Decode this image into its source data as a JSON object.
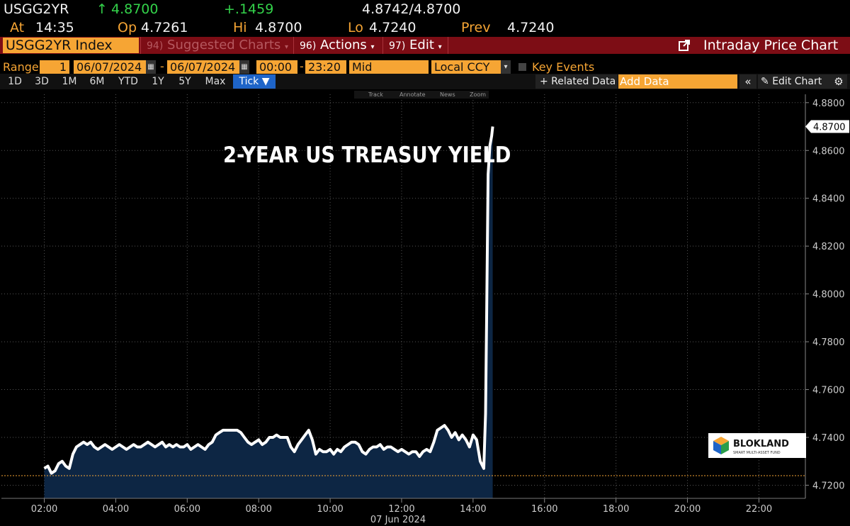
{
  "quote": {
    "ticker": "USGG2YR",
    "arrow": "↑",
    "last": "4.8700",
    "change": "+.1459",
    "bid_ask": "4.8742/4.8700",
    "at_label": "At",
    "at_time": "14:35",
    "open_label": "Op",
    "open": "4.7261",
    "high_label": "Hi",
    "high": "4.8700",
    "low_label": "Lo",
    "low": "4.7240",
    "prev_label": "Prev",
    "prev": "4.7240"
  },
  "toolbar": {
    "security": "USGG2YR Index",
    "suggested_num": "94)",
    "suggested": "Suggested Charts",
    "actions_num": "96)",
    "actions": "Actions",
    "edit_num": "97)",
    "edit": "Edit",
    "chart_title": "Intraday Price Chart"
  },
  "range": {
    "label": "Range",
    "count": "1",
    "start_date": "06/07/2024",
    "end_date": "06/07/2024",
    "start_time": "00:00",
    "end_time": "23:20",
    "price_type": "Mid",
    "currency": "Local CCY",
    "key_events": "Key Events"
  },
  "periods": [
    "1D",
    "3D",
    "1M",
    "6M",
    "YTD",
    "1Y",
    "5Y",
    "Max"
  ],
  "tick_label": "Tick ▼",
  "related_data": "+ Related Data",
  "add_data_placeholder": "Add Data",
  "edit_chart": "Edit Chart",
  "chart_tools": [
    "Track",
    "Annotate",
    "News",
    "Zoom"
  ],
  "overlay_title": "2-YEAR US TREASUY YIELD",
  "logo": {
    "name": "BLOKLAND",
    "tagline": "SMART MULTI-ASSET FUND"
  },
  "colors": {
    "orange": "#f6a534",
    "green": "#33d24a",
    "red_bar": "#7d0d15",
    "area_fill": "#0d2644",
    "line": "#ffffff",
    "prev_close_line": "#f6a534"
  },
  "chart_data": {
    "type": "area",
    "title": "2-YEAR US TREASUY YIELD",
    "date_label": "07 Jun 2024",
    "x_ticks": [
      "02:00",
      "04:00",
      "06:00",
      "08:00",
      "10:00",
      "12:00",
      "14:00",
      "16:00",
      "18:00",
      "20:00",
      "22:00"
    ],
    "y_ticks": [
      "4.7200",
      "4.7400",
      "4.7600",
      "4.7800",
      "4.8000",
      "4.8200",
      "4.8400",
      "4.8600",
      "4.8800"
    ],
    "xlim": [
      0.8,
      23.3
    ],
    "ylim": [
      4.7145,
      4.8835
    ],
    "last_value_label": "4.8700",
    "prev_close": 4.724,
    "series": [
      {
        "values_x": [
          2.0,
          2.1,
          2.2,
          2.3,
          2.4,
          2.5,
          2.6,
          2.7,
          2.8,
          2.9,
          3.0,
          3.1,
          3.2,
          3.3,
          3.4,
          3.5,
          3.6,
          3.7,
          3.8,
          3.9,
          4.0,
          4.1,
          4.2,
          4.3,
          4.4,
          4.5,
          4.6,
          4.7,
          4.8,
          4.9,
          5.0,
          5.1,
          5.2,
          5.3,
          5.4,
          5.5,
          5.6,
          5.7,
          5.8,
          5.9,
          6.0,
          6.1,
          6.2,
          6.3,
          6.4,
          6.5,
          6.6,
          6.7,
          6.8,
          6.9,
          7.0,
          7.1,
          7.2,
          7.3,
          7.4,
          7.5,
          7.6,
          7.7,
          7.8,
          7.9,
          8.0,
          8.1,
          8.2,
          8.3,
          8.4,
          8.5,
          8.6,
          8.7,
          8.8,
          8.9,
          9.0,
          9.1,
          9.2,
          9.3,
          9.4,
          9.5,
          9.6,
          9.7,
          9.8,
          9.9,
          10.0,
          10.1,
          10.2,
          10.3,
          10.4,
          10.5,
          10.6,
          10.7,
          10.8,
          10.9,
          11.0,
          11.1,
          11.2,
          11.3,
          11.4,
          11.5,
          11.6,
          11.7,
          11.8,
          11.9,
          12.0,
          12.1,
          12.2,
          12.3,
          12.4,
          12.5,
          12.6,
          12.7,
          12.8,
          12.9,
          13.0,
          13.1,
          13.2,
          13.3,
          13.4,
          13.5,
          13.6,
          13.7,
          13.8,
          13.9,
          14.0,
          14.1,
          14.2,
          14.3,
          14.35,
          14.38,
          14.42,
          14.47,
          14.52,
          14.55
        ],
        "values_y": [
          4.727,
          4.728,
          4.725,
          4.726,
          4.729,
          4.73,
          4.728,
          4.727,
          4.733,
          4.736,
          4.737,
          4.738,
          4.737,
          4.738,
          4.736,
          4.735,
          4.736,
          4.737,
          4.736,
          4.735,
          4.736,
          4.737,
          4.736,
          4.735,
          4.736,
          4.737,
          4.736,
          4.736,
          4.737,
          4.738,
          4.737,
          4.736,
          4.737,
          4.738,
          4.736,
          4.737,
          4.736,
          4.737,
          4.736,
          4.736,
          4.737,
          4.735,
          4.736,
          4.737,
          4.736,
          4.735,
          4.737,
          4.738,
          4.741,
          4.742,
          4.743,
          4.743,
          4.743,
          4.743,
          4.743,
          4.742,
          4.74,
          4.738,
          4.737,
          4.738,
          4.739,
          4.737,
          4.738,
          4.74,
          4.74,
          4.741,
          4.74,
          4.74,
          4.74,
          4.736,
          4.734,
          4.737,
          4.739,
          4.741,
          4.743,
          4.739,
          4.733,
          4.735,
          4.734,
          4.734,
          4.735,
          4.733,
          4.735,
          4.734,
          4.736,
          4.737,
          4.738,
          4.738,
          4.737,
          4.734,
          4.733,
          4.735,
          4.736,
          4.736,
          4.737,
          4.735,
          4.736,
          4.736,
          4.735,
          4.734,
          4.735,
          4.734,
          4.733,
          4.734,
          4.734,
          4.732,
          4.734,
          4.735,
          4.734,
          4.738,
          4.743,
          4.744,
          4.745,
          4.743,
          4.74,
          4.742,
          4.739,
          4.741,
          4.739,
          4.736,
          4.741,
          4.739,
          4.73,
          4.727,
          4.75,
          4.79,
          4.85,
          4.862,
          4.866,
          4.87
        ]
      }
    ]
  }
}
